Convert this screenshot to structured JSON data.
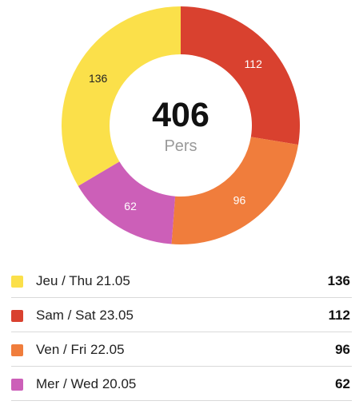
{
  "summary": {
    "total": "406",
    "unit": "Pers"
  },
  "chart_data": {
    "type": "pie",
    "style": "donut",
    "total": 406,
    "categories": [
      "Jeu / Thu 21.05",
      "Sam / Sat 23.05",
      "Ven / Fri 22.05",
      "Mer / Wed 20.05"
    ],
    "values": [
      136,
      112,
      96,
      62
    ],
    "colors": [
      "#fbe04a",
      "#d9412f",
      "#f07d3c",
      "#cc5fb8"
    ],
    "chart_order": [
      1,
      2,
      3,
      0
    ],
    "data_labels": [
      "136",
      "112",
      "96",
      "62"
    ]
  },
  "legend": [
    {
      "label": "Jeu / Thu 21.05",
      "value": "136",
      "color": "#fbe04a"
    },
    {
      "label": "Sam / Sat 23.05",
      "value": "112",
      "color": "#d9412f"
    },
    {
      "label": "Ven / Fri 22.05",
      "value": "96",
      "color": "#f07d3c"
    },
    {
      "label": "Mer / Wed 20.05",
      "value": "62",
      "color": "#cc5fb8"
    }
  ]
}
